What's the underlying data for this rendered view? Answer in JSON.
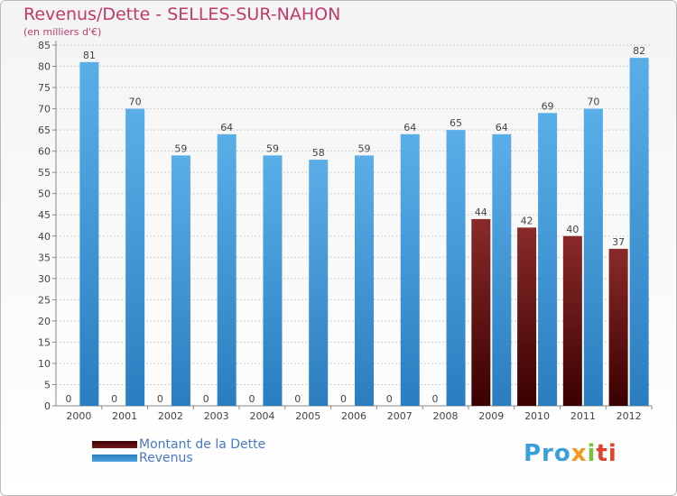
{
  "title": "Revenus/Dette - SELLES-SUR-NAHON",
  "subtitle": "(en milliers d'€)",
  "logo": {
    "text": "Proxiti",
    "parts": [
      "Pro",
      "x",
      "i",
      "ti"
    ]
  },
  "colors": {
    "dette": "#7a1a1a",
    "revenus": "#4fa3e0",
    "title": "#c0396b",
    "legend_text": "#4a78c8"
  },
  "chart_data": {
    "type": "bar",
    "title": "Revenus/Dette - SELLES-SUR-NAHON",
    "ylabel": "(en milliers d'€)",
    "categories": [
      "2000",
      "2001",
      "2002",
      "2003",
      "2004",
      "2005",
      "2006",
      "2007",
      "2008",
      "2009",
      "2010",
      "2011",
      "2012"
    ],
    "series": [
      {
        "name": "Montant de la Dette",
        "values": [
          0,
          0,
          0,
          0,
          0,
          0,
          0,
          0,
          0,
          44,
          42,
          40,
          37
        ]
      },
      {
        "name": "Revenus",
        "values": [
          81,
          70,
          59,
          64,
          59,
          58,
          59,
          64,
          65,
          64,
          69,
          70,
          82
        ]
      }
    ],
    "ylim": [
      0,
      85
    ],
    "yticks": [
      0,
      5,
      10,
      15,
      20,
      25,
      30,
      35,
      40,
      45,
      50,
      55,
      60,
      65,
      70,
      75,
      80,
      85
    ],
    "grid": true,
    "legend_position": "bottom-left"
  }
}
